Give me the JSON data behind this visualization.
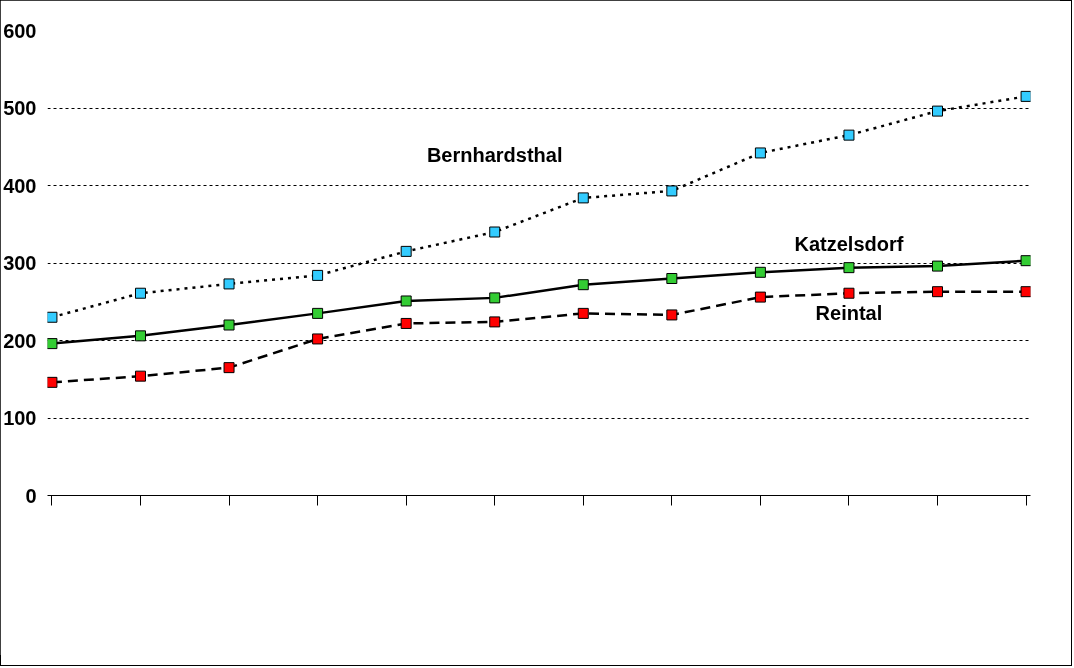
{
  "chart_data": {
    "type": "line",
    "categories": [
      null,
      null,
      null,
      null,
      null,
      null,
      null,
      null,
      null,
      null,
      null,
      null
    ],
    "series": [
      {
        "name": "Bernhardsthal",
        "color": "#33ccff",
        "line_style": "dotted",
        "values": [
          230,
          261,
          273,
          284,
          315,
          340,
          384,
          393,
          442,
          465,
          496,
          515
        ]
      },
      {
        "name": "Katzelsdorf",
        "color": "#33cc33",
        "line_style": "solid",
        "values": [
          196,
          206,
          220,
          235,
          251,
          255,
          272,
          280,
          288,
          294,
          296,
          303
        ]
      },
      {
        "name": "Reintal",
        "color": "#ff0000",
        "line_style": "dashed",
        "values": [
          146,
          154,
          165,
          202,
          222,
          224,
          235,
          233,
          256,
          261,
          263,
          263
        ]
      }
    ],
    "ylim": [
      0,
      600
    ],
    "yticks": [
      0,
      100,
      200,
      300,
      400,
      500,
      600
    ],
    "grid": "y",
    "marker": "square",
    "tick_labels": "y"
  }
}
